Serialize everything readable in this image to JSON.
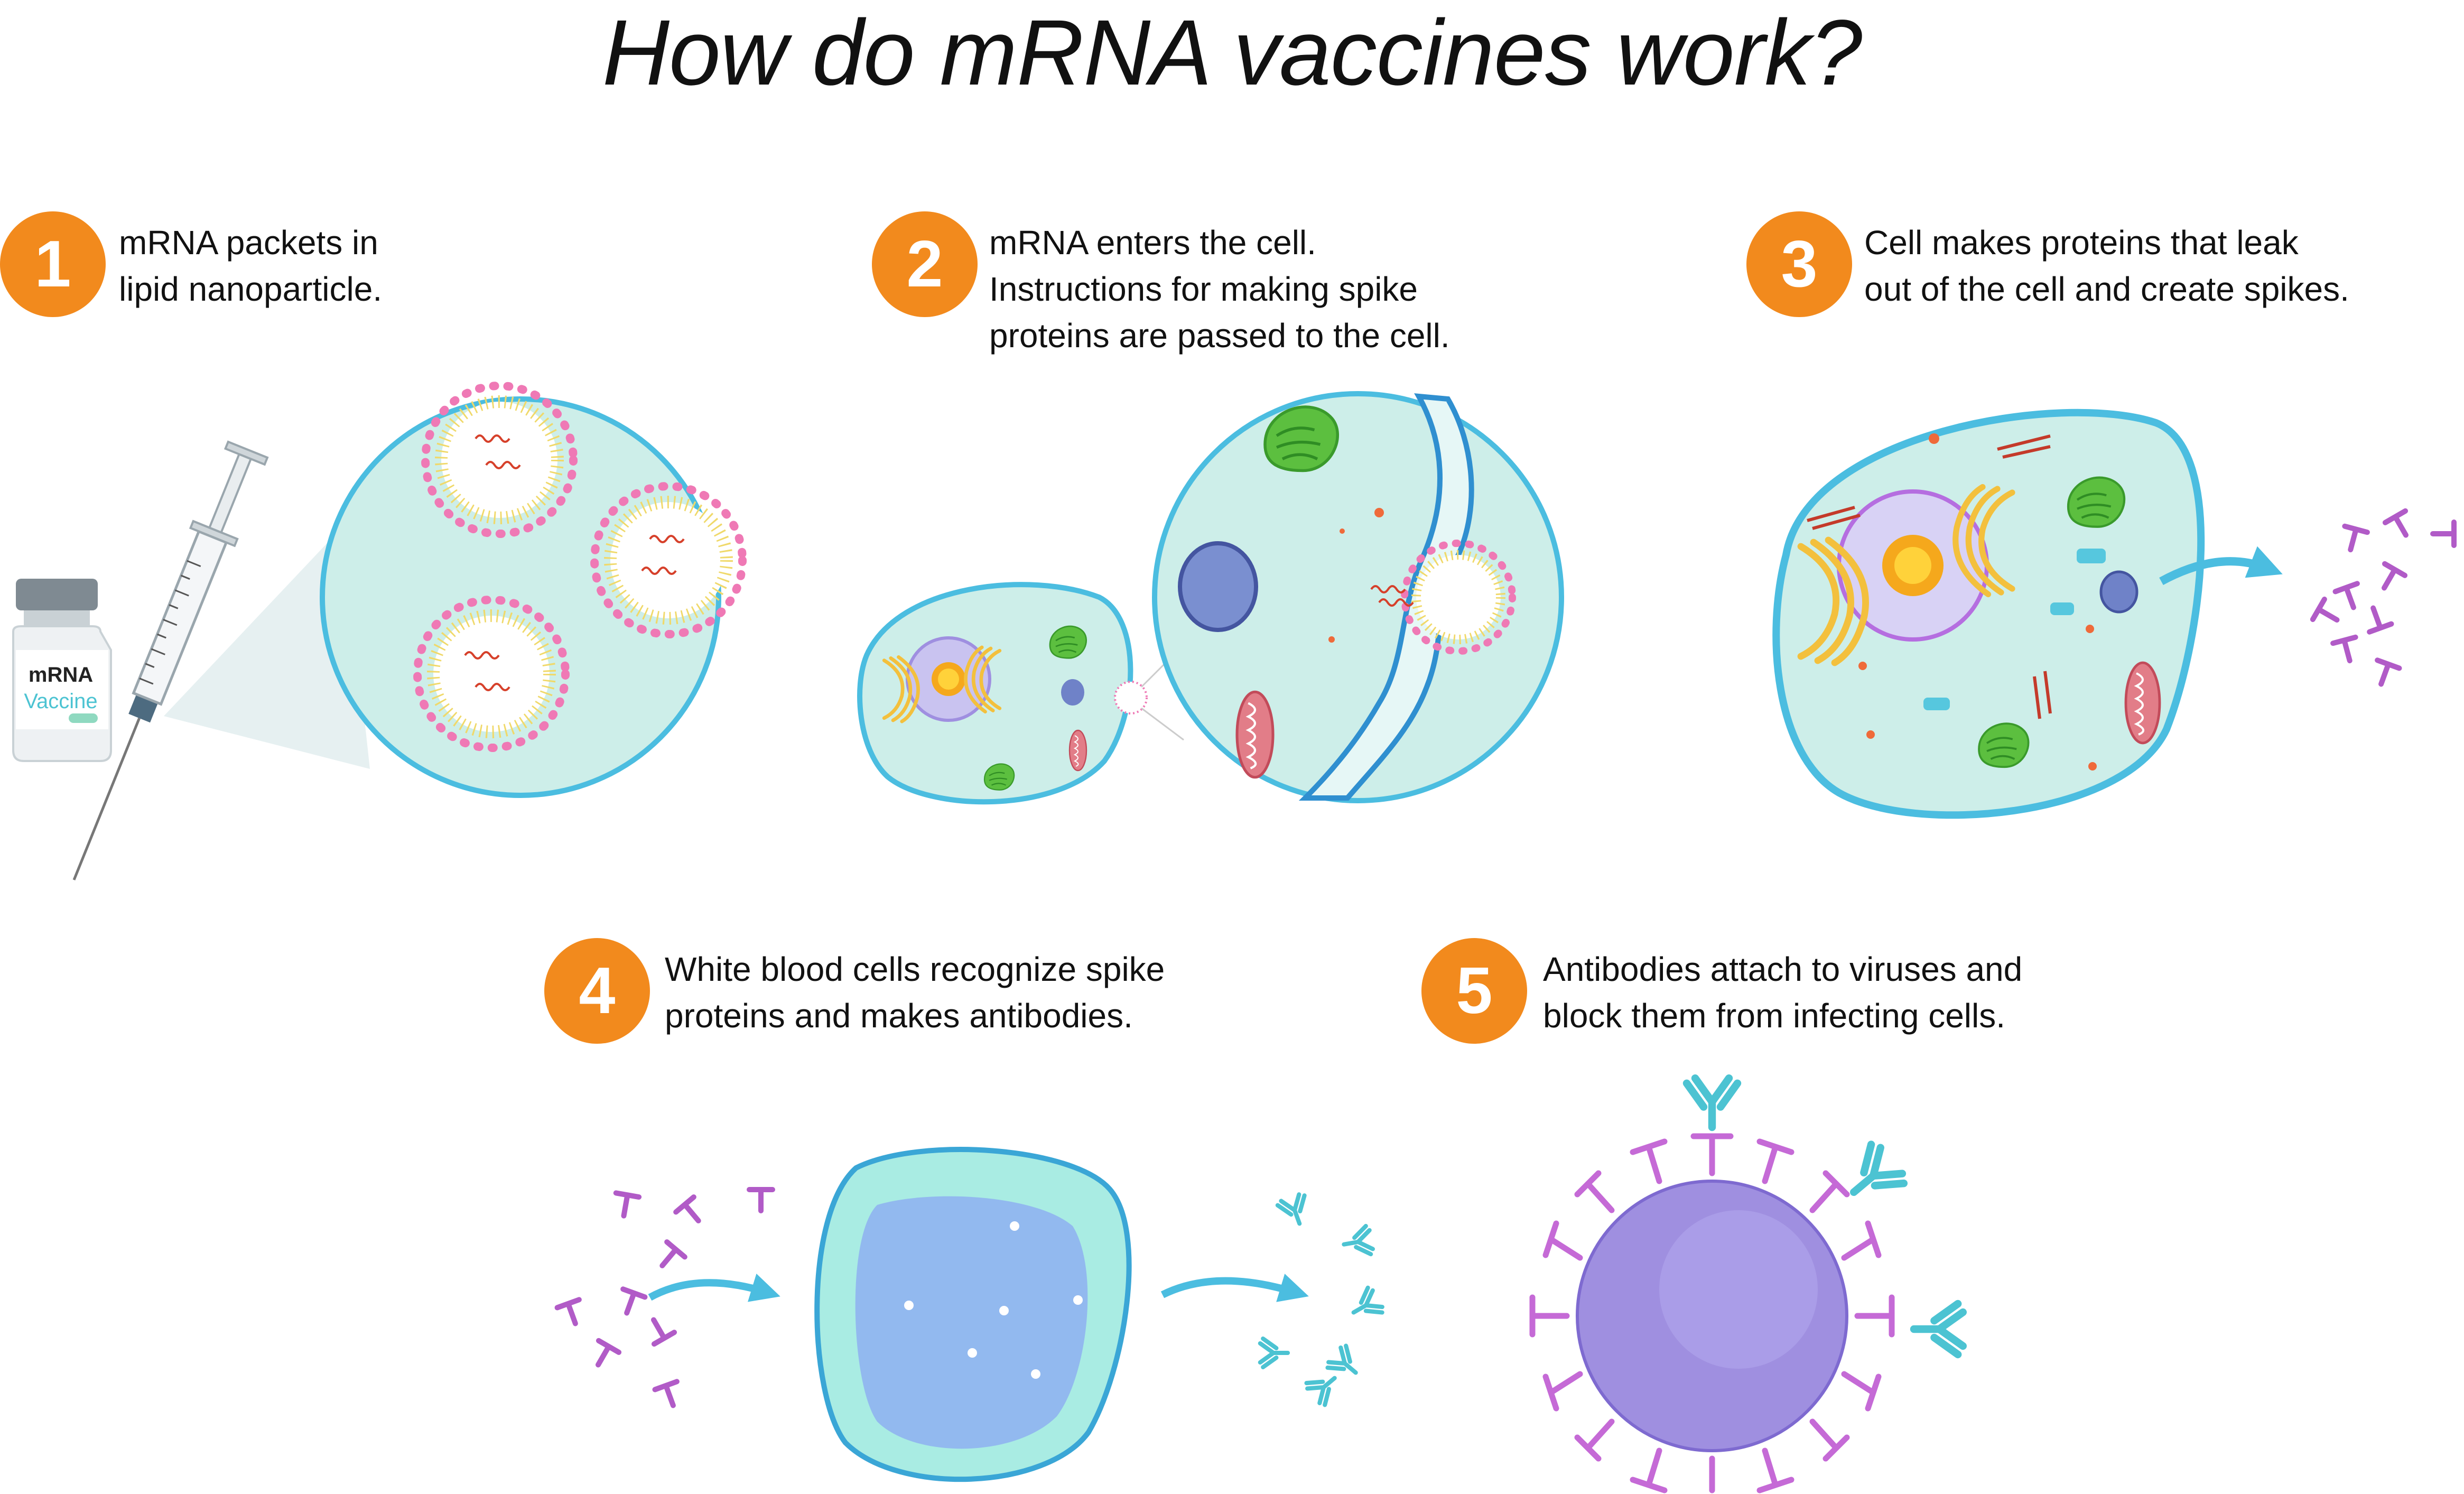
{
  "title": "How do mRNA vaccines work?",
  "steps": [
    {
      "number": "1",
      "lines": [
        "mRNA packets in",
        "lipid nanoparticle."
      ]
    },
    {
      "number": "2",
      "lines": [
        "mRNA enters the cell.",
        "Instructions for making spike",
        "proteins are passed to the cell."
      ]
    },
    {
      "number": "3",
      "lines": [
        "Cell makes proteins that leak",
        "out of the cell and create spikes."
      ]
    },
    {
      "number": "4",
      "lines": [
        "White blood cells recognize spike",
        "proteins and makes antibodies."
      ]
    },
    {
      "number": "5",
      "lines": [
        "Antibodies attach to viruses and",
        "block them from infecting cells."
      ]
    }
  ],
  "vial": {
    "line1": "mRNA",
    "line2": "Vaccine"
  },
  "colors": {
    "badge": "#f28a1d",
    "cell_fill": "#cdeee9",
    "cell_border": "#4bbde0",
    "spike_protein": "#b15bc7",
    "antibody": "#4cc3d2",
    "virus": "#9f8fe0",
    "arrow": "#4bbde0",
    "nucleus": "#b9b4ec",
    "golgi": "#f3c03d",
    "chloroplast": "#4fb43a",
    "mitochondria": "#d55b6a",
    "lipid_head": "#ef79b5"
  },
  "icons": [
    "syringe-icon",
    "vaccine-vial-icon",
    "antibody-icon",
    "spike-protein-icon",
    "virus-icon",
    "arrow-icon"
  ]
}
